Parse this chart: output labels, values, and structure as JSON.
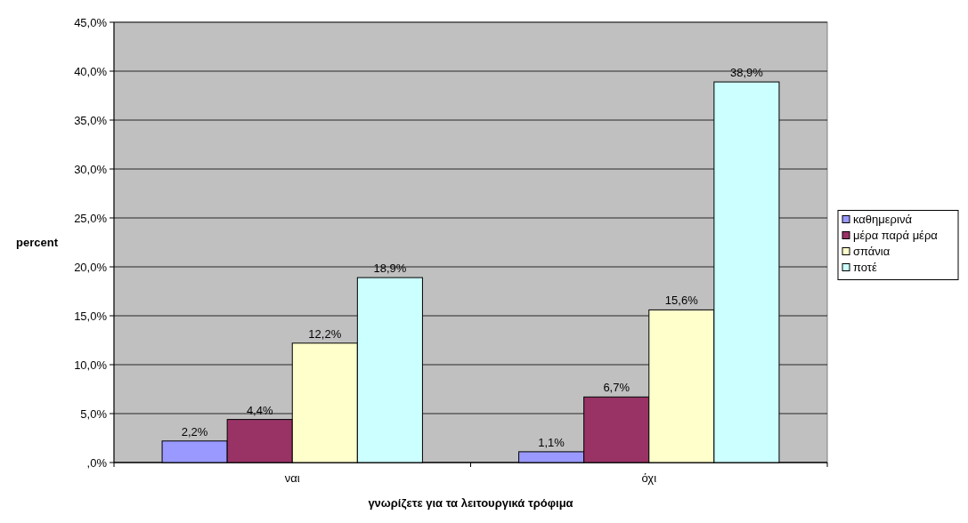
{
  "chart_data": {
    "type": "bar",
    "xlabel": "γνωρίζετε για τα λειτουργικά τρόφιμα",
    "ylabel": "percent",
    "categories": [
      "ναι",
      "όχι"
    ],
    "series": [
      {
        "name": "καθημερινά",
        "color": "#9999ff",
        "values": [
          2.2,
          1.1
        ],
        "value_labels": [
          "2,2%",
          "1,1%"
        ]
      },
      {
        "name": "μέρα παρά μέρα",
        "color": "#993366",
        "values": [
          4.4,
          6.7
        ],
        "value_labels": [
          "4,4%",
          "6,7%"
        ]
      },
      {
        "name": "σπάνια",
        "color": "#ffffcc",
        "values": [
          12.2,
          15.6
        ],
        "value_labels": [
          "12,2%",
          "15,6%"
        ]
      },
      {
        "name": "ποτέ",
        "color": "#ccffff",
        "values": [
          18.9,
          38.9
        ],
        "value_labels": [
          "18,9%",
          "38,9%"
        ]
      }
    ],
    "ylim": [
      0,
      45
    ],
    "yticks": [
      {
        "value": 0,
        "label": ",0%"
      },
      {
        "value": 5,
        "label": "5,0%"
      },
      {
        "value": 10,
        "label": "10,0%"
      },
      {
        "value": 15,
        "label": "15,0%"
      },
      {
        "value": 20,
        "label": "20,0%"
      },
      {
        "value": 25,
        "label": "25,0%"
      },
      {
        "value": 30,
        "label": "30,0%"
      },
      {
        "value": 35,
        "label": "35,0%"
      },
      {
        "value": 40,
        "label": "40,0%"
      },
      {
        "value": 45,
        "label": "45,0%"
      }
    ],
    "grid": "y",
    "legend": "right"
  }
}
